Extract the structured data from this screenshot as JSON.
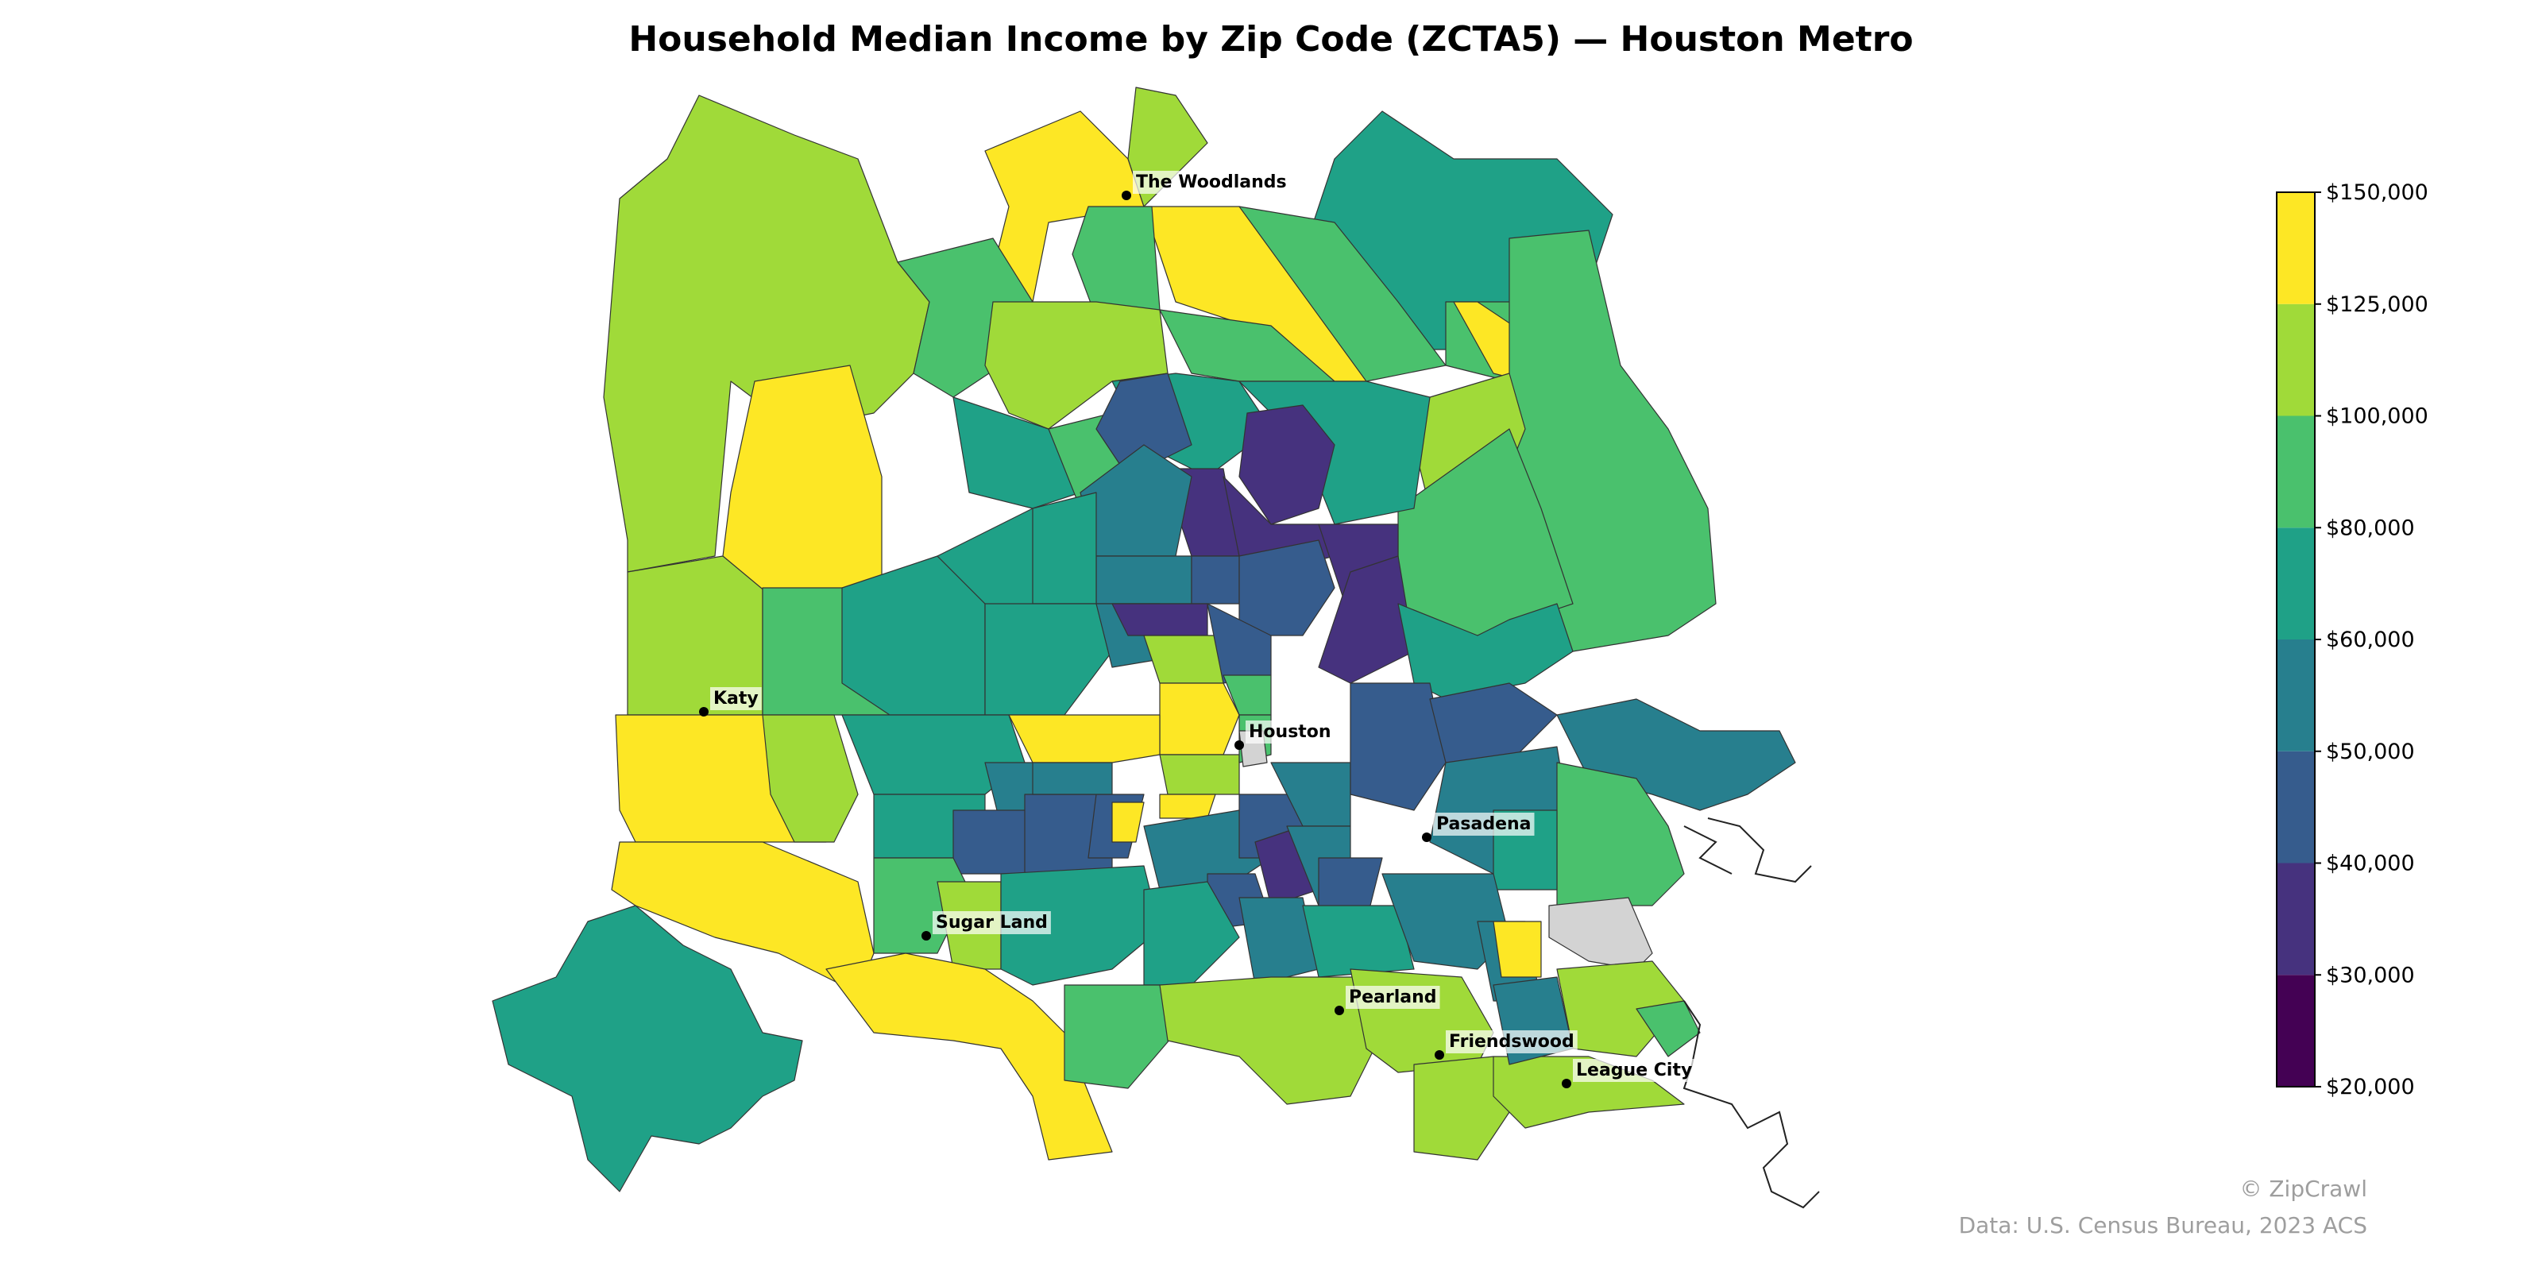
{
  "title": "Household Median Income by Zip Code (ZCTA5) — Houston Metro",
  "colorbar": {
    "ticks": [
      "$20,000",
      "$30,000",
      "$40,000",
      "$50,000",
      "$60,000",
      "$80,000",
      "$100,000",
      "$125,000",
      "$150,000"
    ],
    "bins": [
      {
        "range": "$20,000–$30,000",
        "color": "#440154"
      },
      {
        "range": "$30,000–$40,000",
        "color": "#46327e"
      },
      {
        "range": "$40,000–$50,000",
        "color": "#365c8d"
      },
      {
        "range": "$50,000–$60,000",
        "color": "#277f8e"
      },
      {
        "range": "$60,000–$80,000",
        "color": "#1fa187"
      },
      {
        "range": "$80,000–$100,000",
        "color": "#4ac16d"
      },
      {
        "range": "$100,000–$125,000",
        "color": "#a0da39"
      },
      {
        "range": "$125,000–$150,000",
        "color": "#fde725"
      }
    ],
    "no_data_color": "#d3d3d3"
  },
  "cities": [
    {
      "name": "The Woodlands"
    },
    {
      "name": "Katy"
    },
    {
      "name": "Houston"
    },
    {
      "name": "Pasadena"
    },
    {
      "name": "Sugar Land"
    },
    {
      "name": "Pearland"
    },
    {
      "name": "Friendswood"
    },
    {
      "name": "League City"
    }
  ],
  "credit": "© ZipCrawl",
  "source": "Data: U.S. Census Bureau, 2023 ACS"
}
